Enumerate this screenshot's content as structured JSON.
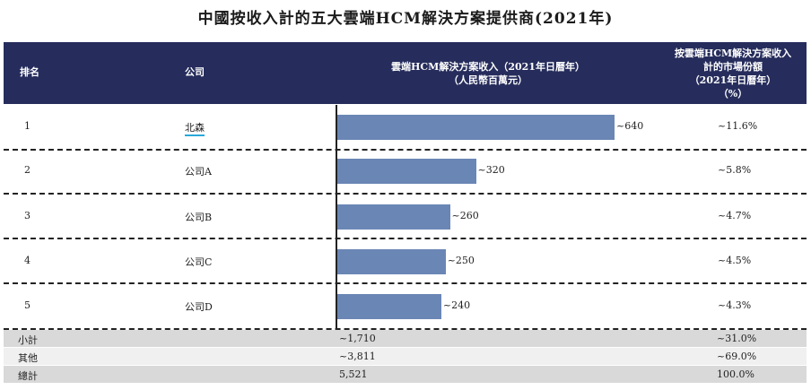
{
  "title": "中國按收入計的五大雲端HCM解決方案提供商(2021年)",
  "header": {
    "rank": "排名",
    "company": "公司",
    "revenue_line1": "雲端HCM解決方案收入（2021年日曆年）",
    "revenue_line2": "（人民幣百萬元）",
    "share_line1": "按雲端HCM解決方案收入",
    "share_line2": "計的市場份額",
    "share_line3": "（2021年日曆年）",
    "share_line4": "（%）"
  },
  "rows": [
    {
      "rank": "1",
      "company": "北森",
      "value_label": "~640",
      "share": "~11.6%"
    },
    {
      "rank": "2",
      "company": "公司A",
      "value_label": "~320",
      "share": "~5.8%"
    },
    {
      "rank": "3",
      "company": "公司B",
      "value_label": "~260",
      "share": "~4.7%"
    },
    {
      "rank": "4",
      "company": "公司C",
      "value_label": "~250",
      "share": "~4.5%"
    },
    {
      "rank": "5",
      "company": "公司D",
      "value_label": "~240",
      "share": "~4.3%"
    }
  ],
  "summary": [
    {
      "label": "小計",
      "revenue": "~1,710",
      "share": "~31.0%"
    },
    {
      "label": "其他",
      "revenue": "~3,811",
      "share": "~69.0%"
    },
    {
      "label": "總計",
      "revenue": "5,521",
      "share": "100.0%"
    }
  ],
  "colors": {
    "header_bg": "#262d5c",
    "bar": "#6a86b5",
    "link_underline": "#29a8d8"
  },
  "chart_data": {
    "type": "bar",
    "orientation": "horizontal",
    "categories": [
      "北森",
      "公司A",
      "公司B",
      "公司C",
      "公司D"
    ],
    "values": [
      640,
      320,
      260,
      250,
      240
    ],
    "xlim": [
      0,
      900
    ],
    "title": "中國按收入計的五大雲端HCM解決方案提供商(2021年)",
    "xlabel": "雲端HCM解決方案收入（2021年日曆年）（人民幣百萬元）",
    "ylabel": "",
    "market_share": [
      "~11.6%",
      "~5.8%",
      "~4.7%",
      "~4.5%",
      "~4.3%"
    ]
  }
}
